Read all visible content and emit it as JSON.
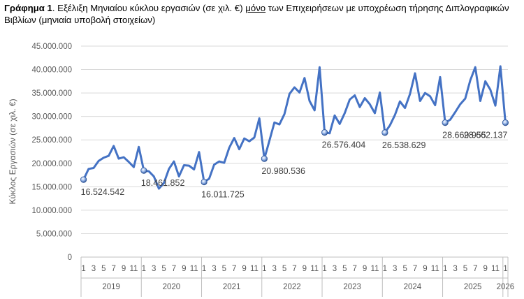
{
  "title": {
    "bold": "Γράφημα 1",
    "part1": ". Εξέλιξη Μηνιαίου κύκλου εργασιών (σε χιλ. €) ",
    "underlined": "μόνο",
    "part2": " των Επιχειρήσεων με υποχρέωση τήρησης Διπλογραφικών Βιβλίων (μηνιαία υποβολή στοιχείων)"
  },
  "chart_data": {
    "type": "line",
    "ylabel": "Κύκλος Εργασιών (σε χιλ. €)",
    "xlabel": "",
    "ylim": [
      0,
      45000000
    ],
    "y_ticks": [
      "0",
      "5.000.000",
      "10.000.000",
      "15.000.000",
      "20.000.000",
      "25.000.000",
      "30.000.000",
      "35.000.000",
      "40.000.000",
      "45.000.000"
    ],
    "x_month_ticks": [
      "1",
      "3",
      "5",
      "7",
      "9",
      "11"
    ],
    "years": [
      "2019",
      "2020",
      "2021",
      "2022",
      "2023",
      "2024",
      "2025",
      "2026"
    ],
    "line_color": "#4472c4",
    "series": [
      {
        "values": [
          16524542,
          18800000,
          19000000,
          20500000,
          21200000,
          21600000,
          23700000,
          21000000,
          21300000,
          20300000,
          19200000,
          23500000,
          18461852,
          18300000,
          17200000,
          14600000,
          15800000,
          18800000,
          20400000,
          17200000,
          19600000,
          19500000,
          18700000,
          22400000,
          16011725,
          16700000,
          19700000,
          20400000,
          20100000,
          23300000,
          25400000,
          23000000,
          25300000,
          24700000,
          25500000,
          29600000,
          20980536,
          24800000,
          28700000,
          28300000,
          30500000,
          34800000,
          36200000,
          35100000,
          38200000,
          33300000,
          31300000,
          40500000,
          26576404,
          26400000,
          30200000,
          28400000,
          30700000,
          33600000,
          34500000,
          32000000,
          33900000,
          32600000,
          30700000,
          35100000,
          26538629,
          28100000,
          30300000,
          33200000,
          31800000,
          34800000,
          39200000,
          33300000,
          35000000,
          34300000,
          32400000,
          38400000,
          28669955,
          29300000,
          30900000,
          32600000,
          33800000,
          37700000,
          40500000,
          33300000,
          37500000,
          35700000,
          32300000,
          40700000,
          28662137
        ]
      }
    ],
    "data_labels": [
      {
        "index": 0,
        "text": "16.524.542"
      },
      {
        "index": 12,
        "text": "18.461.852"
      },
      {
        "index": 24,
        "text": "16.011.725"
      },
      {
        "index": 36,
        "text": "20.980.536"
      },
      {
        "index": 48,
        "text": "26.576.404"
      },
      {
        "index": 60,
        "text": "26.538.629"
      },
      {
        "index": 72,
        "text": "28.669.955"
      },
      {
        "index": 84,
        "text": "28.662.137"
      }
    ],
    "grid": true
  }
}
